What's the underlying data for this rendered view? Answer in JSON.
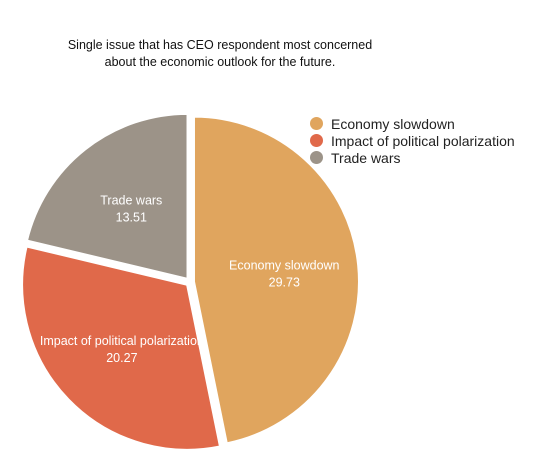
{
  "chart_data": {
    "type": "pie",
    "title_lines": [
      "Single issue that has CEO respondent most concerned",
      "about the economic outlook for the future."
    ],
    "slices": [
      {
        "label": "Economy slowdown",
        "value": 29.73,
        "value_label": "29.73",
        "color": "#E0A55E"
      },
      {
        "label": "Impact of political polarization",
        "value": 20.27,
        "value_label": "20.27",
        "color": "#E0694A"
      },
      {
        "label": "Trade wars",
        "value": 13.51,
        "value_label": "13.51",
        "color": "#9C9388"
      }
    ],
    "legend_position": "top-right",
    "start_angle": "12 o'clock, clockwise",
    "slice_separation": "exploded"
  }
}
